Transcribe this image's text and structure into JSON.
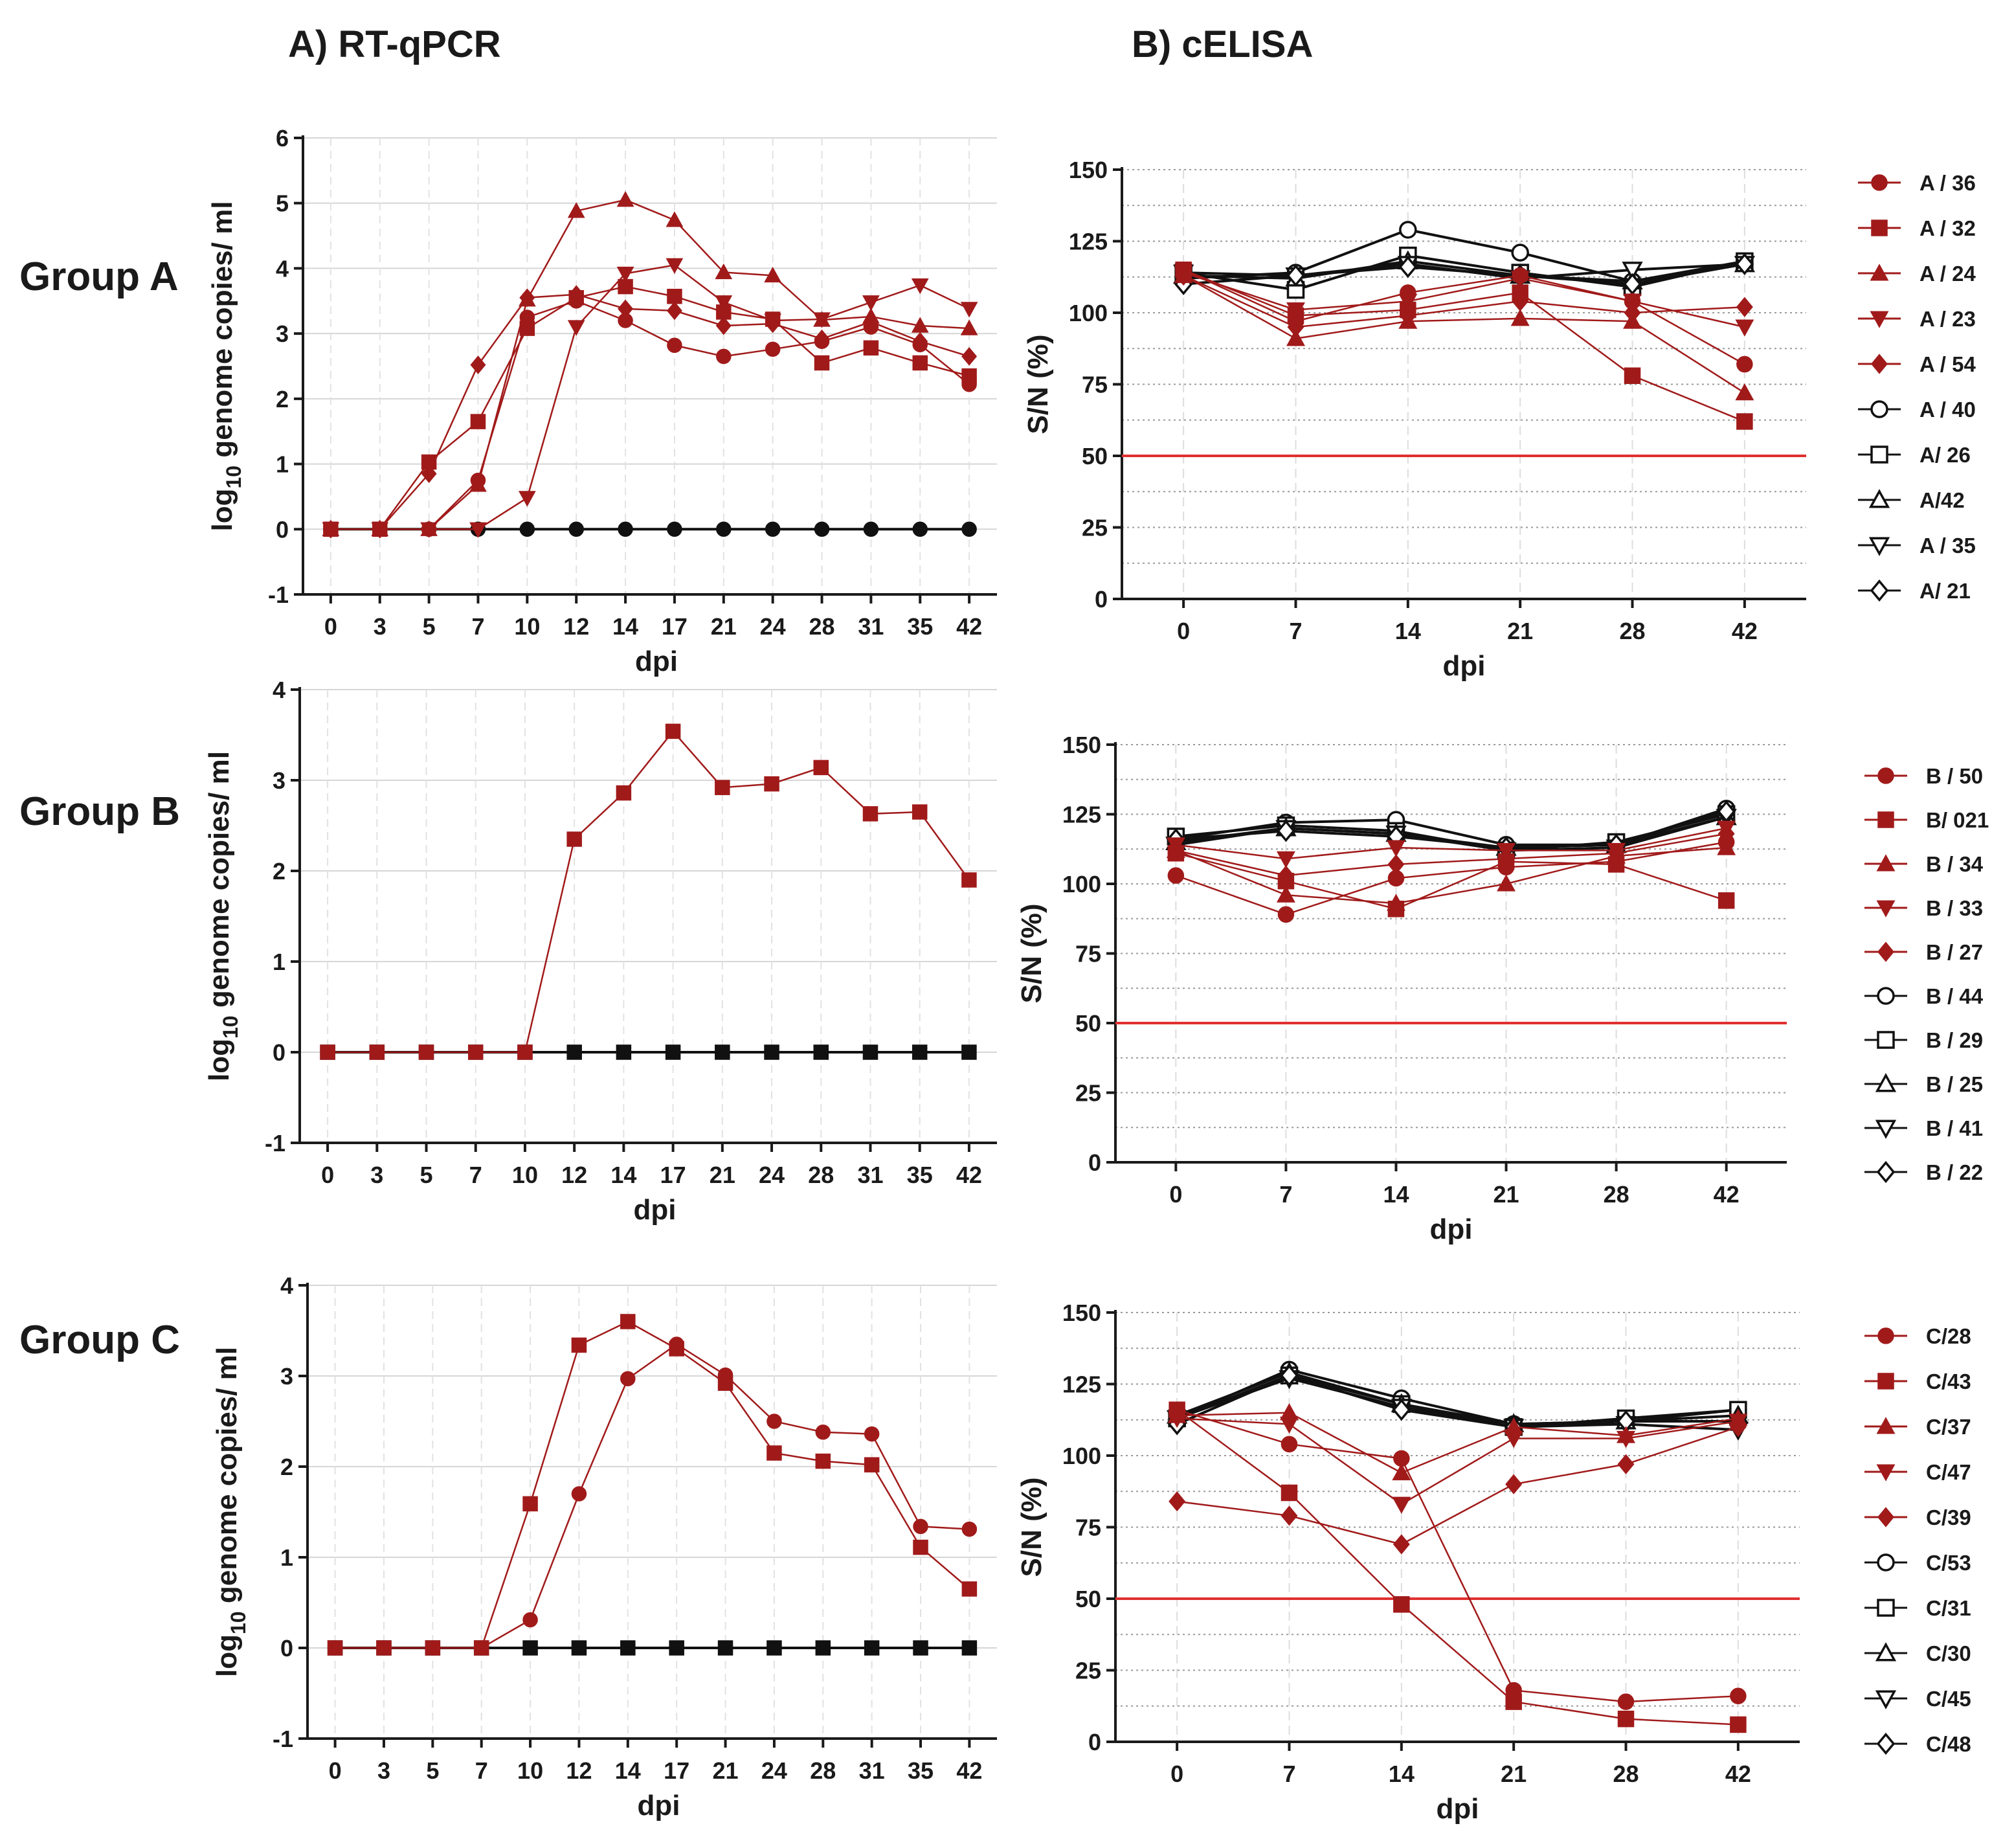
{
  "headings": {
    "a": "A) RT-qPCR",
    "b": "B) cELISA"
  },
  "groups": [
    "Group A",
    "Group B",
    "Group C"
  ],
  "colors": {
    "positive": "#a11a1a",
    "negative": "#111111",
    "cutoff": "#e03030",
    "grid": "#c8c8c8",
    "axis": "#1a1a1a"
  },
  "markers": [
    "circle",
    "square",
    "triangle-up",
    "triangle-down",
    "diamond"
  ],
  "chart_data": [
    {
      "id": "A1",
      "type": "line",
      "title": "RT-qPCR Group A",
      "xlabel": "dpi",
      "ylabel": "log10 genome copies/ ml",
      "ylabel_base": "log",
      "ylabel_sub": "10",
      "ylabel_rest": " genome copies/ ml",
      "categories": [
        "0",
        "3",
        "5",
        "7",
        "10",
        "12",
        "14",
        "17",
        "21",
        "24",
        "28",
        "31",
        "35",
        "42"
      ],
      "ylim": [
        -1,
        6
      ],
      "yticks": [
        "-1",
        "0",
        "1",
        "2",
        "3",
        "4",
        "5",
        "6"
      ],
      "series": [
        {
          "name": "A / 36",
          "marker": "circle",
          "color": "positive",
          "values": [
            0,
            0,
            0,
            0.75,
            3.25,
            3.5,
            3.2,
            2.82,
            2.65,
            2.76,
            2.88,
            3.1,
            2.83,
            2.22
          ]
        },
        {
          "name": "A / 32",
          "marker": "square",
          "color": "positive",
          "values": [
            0,
            0,
            1.03,
            1.65,
            3.08,
            3.55,
            3.72,
            3.57,
            3.33,
            3.22,
            2.55,
            2.78,
            2.55,
            2.35
          ]
        },
        {
          "name": "A / 24",
          "marker": "triangle-up",
          "color": "positive",
          "values": [
            0,
            0,
            0,
            0.68,
            3.52,
            4.88,
            5.05,
            4.74,
            3.94,
            3.89,
            3.21,
            3.26,
            3.12,
            3.08
          ]
        },
        {
          "name": "A / 23",
          "marker": "triangle-down",
          "color": "positive",
          "values": [
            0,
            0,
            0,
            0,
            0.48,
            3.1,
            3.92,
            4.05,
            3.48,
            3.2,
            3.22,
            3.48,
            3.74,
            3.38
          ]
        },
        {
          "name": "A / 54",
          "marker": "diamond",
          "color": "positive",
          "values": [
            0,
            0,
            0.85,
            2.52,
            3.55,
            3.6,
            3.38,
            3.35,
            3.12,
            3.15,
            2.92,
            3.18,
            2.88,
            2.65
          ]
        },
        {
          "name": "A / 40",
          "marker": "circle",
          "color": "negative",
          "values": [
            0,
            0,
            0,
            0,
            0,
            0,
            0,
            0,
            0,
            0,
            0,
            0,
            0,
            0
          ]
        }
      ]
    },
    {
      "id": "B1",
      "type": "line",
      "title": "cELISA Group A",
      "xlabel": "dpi",
      "ylabel": "S/N (%)",
      "categories": [
        "0",
        "7",
        "14",
        "21",
        "28",
        "42"
      ],
      "ylim": [
        0,
        150
      ],
      "yticks": [
        "0",
        "25",
        "50",
        "75",
        "100",
        "125",
        "150"
      ],
      "cutoff": 50,
      "series": [
        {
          "name": "A / 36",
          "marker": "circle",
          "color": "positive",
          "values": [
            115,
            97,
            107,
            113,
            104,
            82
          ]
        },
        {
          "name": "A / 32",
          "marker": "square",
          "color": "positive",
          "values": [
            115,
            99,
            101,
            107,
            78,
            62
          ]
        },
        {
          "name": "A / 24",
          "marker": "triangle-up",
          "color": "positive",
          "values": [
            113,
            91,
            97,
            98,
            97,
            72
          ]
        },
        {
          "name": "A / 23",
          "marker": "triangle-down",
          "color": "positive",
          "values": [
            114,
            101,
            104,
            112,
            104,
            95
          ]
        },
        {
          "name": "A / 54",
          "marker": "diamond",
          "color": "positive",
          "values": [
            113,
            95,
            99,
            104,
            100,
            102
          ]
        },
        {
          "name": "A / 40",
          "marker": "circle-open",
          "color": "negative",
          "values": [
            112,
            114,
            129,
            121,
            111,
            118
          ]
        },
        {
          "name": "A/ 26",
          "marker": "square-open",
          "color": "negative",
          "values": [
            114,
            108,
            120,
            114,
            109,
            118
          ]
        },
        {
          "name": "A/42",
          "marker": "triangle-up-open",
          "color": "negative",
          "values": [
            113,
            112,
            118,
            113,
            111,
            117
          ]
        },
        {
          "name": "A / 35",
          "marker": "triangle-down-open",
          "color": "negative",
          "values": [
            114,
            113,
            117,
            112,
            115,
            117
          ]
        },
        {
          "name": "A/ 21",
          "marker": "diamond-open",
          "color": "negative",
          "values": [
            110,
            113,
            116,
            113,
            110,
            117
          ]
        }
      ]
    },
    {
      "id": "A2",
      "type": "line",
      "title": "RT-qPCR Group B",
      "xlabel": "dpi",
      "ylabel": "log10 genome copies/ ml",
      "ylabel_base": "log",
      "ylabel_sub": "10",
      "ylabel_rest": " genome copies/ ml",
      "categories": [
        "0",
        "3",
        "5",
        "7",
        "10",
        "12",
        "14",
        "17",
        "21",
        "24",
        "28",
        "31",
        "35",
        "42"
      ],
      "ylim": [
        -1,
        4
      ],
      "yticks": [
        "-1",
        "0",
        "1",
        "2",
        "3",
        "4"
      ],
      "series": [
        {
          "name": "B/ 021",
          "marker": "square",
          "color": "positive",
          "values": [
            0,
            0,
            0,
            0,
            0,
            2.35,
            2.86,
            3.54,
            2.92,
            2.96,
            3.14,
            2.63,
            2.65,
            1.9
          ]
        },
        {
          "name": "B / 29",
          "marker": "square",
          "color": "negative",
          "values": [
            0,
            0,
            0,
            0,
            0,
            0,
            0,
            0,
            0,
            0,
            0,
            0,
            0,
            0
          ]
        }
      ]
    },
    {
      "id": "B2",
      "type": "line",
      "title": "cELISA Group B",
      "xlabel": "dpi",
      "ylabel": "S/N (%)",
      "categories": [
        "0",
        "7",
        "14",
        "21",
        "28",
        "42"
      ],
      "ylim": [
        0,
        150
      ],
      "yticks": [
        "0",
        "25",
        "50",
        "75",
        "100",
        "125",
        "150"
      ],
      "cutoff": 50,
      "series": [
        {
          "name": "B / 50",
          "marker": "circle",
          "color": "positive",
          "values": [
            103,
            89,
            102,
            106,
            108,
            115
          ]
        },
        {
          "name": "B/ 021",
          "marker": "square",
          "color": "positive",
          "values": [
            111,
            101,
            91,
            108,
            107,
            94
          ]
        },
        {
          "name": "B / 34",
          "marker": "triangle-up",
          "color": "positive",
          "values": [
            112,
            96,
            93,
            100,
            110,
            113
          ]
        },
        {
          "name": "B / 33",
          "marker": "triangle-down",
          "color": "positive",
          "values": [
            114,
            109,
            113,
            112,
            112,
            120
          ]
        },
        {
          "name": "B / 27",
          "marker": "diamond",
          "color": "positive",
          "values": [
            112,
            103,
            107,
            109,
            111,
            118
          ]
        },
        {
          "name": "B / 44",
          "marker": "circle-open",
          "color": "negative",
          "values": [
            116,
            122,
            123,
            114,
            114,
            127
          ]
        },
        {
          "name": "B / 29",
          "marker": "square-open",
          "color": "negative",
          "values": [
            117,
            121,
            119,
            112,
            115,
            125
          ]
        },
        {
          "name": "B / 25",
          "marker": "triangle-up-open",
          "color": "negative",
          "values": [
            115,
            120,
            118,
            113,
            114,
            124
          ]
        },
        {
          "name": "B / 41",
          "marker": "triangle-down-open",
          "color": "negative",
          "values": [
            114,
            120,
            118,
            112,
            113,
            124
          ]
        },
        {
          "name": "B / 22",
          "marker": "diamond-open",
          "color": "negative",
          "values": [
            116,
            119,
            117,
            113,
            114,
            126
          ]
        }
      ]
    },
    {
      "id": "A3",
      "type": "line",
      "title": "RT-qPCR Group C",
      "xlabel": "dpi",
      "ylabel": "log10 genome copies/ ml",
      "ylabel_base": "log",
      "ylabel_sub": "10",
      "ylabel_rest": " genome copies/ ml",
      "categories": [
        "0",
        "3",
        "5",
        "7",
        "10",
        "12",
        "14",
        "17",
        "21",
        "24",
        "28",
        "31",
        "35",
        "42"
      ],
      "ylim": [
        -1,
        4
      ],
      "yticks": [
        "-1",
        "0",
        "1",
        "2",
        "3",
        "4"
      ],
      "series": [
        {
          "name": "C/28",
          "marker": "circle",
          "color": "positive",
          "values": [
            0,
            0,
            0,
            0,
            0.31,
            1.7,
            2.97,
            3.35,
            3.01,
            2.5,
            2.38,
            2.36,
            1.34,
            1.31
          ]
        },
        {
          "name": "C/43",
          "marker": "square",
          "color": "positive",
          "values": [
            0,
            0,
            0,
            0,
            1.59,
            3.34,
            3.6,
            3.3,
            2.92,
            2.15,
            2.06,
            2.02,
            1.11,
            0.65
          ]
        },
        {
          "name": "C/31",
          "marker": "square",
          "color": "negative",
          "values": [
            0,
            0,
            0,
            0,
            0,
            0,
            0,
            0,
            0,
            0,
            0,
            0,
            0,
            0
          ]
        }
      ]
    },
    {
      "id": "B3",
      "type": "line",
      "title": "cELISA Group C",
      "xlabel": "dpi",
      "ylabel": "S/N (%)",
      "categories": [
        "0",
        "7",
        "14",
        "21",
        "28",
        "42"
      ],
      "ylim": [
        0,
        150
      ],
      "yticks": [
        "0",
        "25",
        "50",
        "75",
        "100",
        "125",
        "150"
      ],
      "cutoff": 50,
      "series": [
        {
          "name": "C/28",
          "marker": "circle",
          "color": "positive",
          "values": [
            116,
            104,
            99,
            18,
            14,
            16
          ]
        },
        {
          "name": "C/43",
          "marker": "square",
          "color": "positive",
          "values": [
            116,
            87,
            48,
            14,
            8,
            6
          ]
        },
        {
          "name": "C/37",
          "marker": "triangle-up",
          "color": "positive",
          "values": [
            114,
            115,
            94,
            110,
            107,
            113
          ]
        },
        {
          "name": "C/47",
          "marker": "triangle-down",
          "color": "positive",
          "values": [
            113,
            111,
            83,
            106,
            106,
            112
          ]
        },
        {
          "name": "C/39",
          "marker": "diamond",
          "color": "positive",
          "values": [
            84,
            79,
            69,
            90,
            97,
            110
          ]
        },
        {
          "name": "C/53",
          "marker": "circle-open",
          "color": "negative",
          "values": [
            113,
            130,
            120,
            111,
            112,
            116
          ]
        },
        {
          "name": "C/31",
          "marker": "square-open",
          "color": "negative",
          "values": [
            113,
            128,
            118,
            110,
            113,
            116
          ]
        },
        {
          "name": "C/30",
          "marker": "triangle-up-open",
          "color": "negative",
          "values": [
            114,
            129,
            118,
            111,
            112,
            114
          ]
        },
        {
          "name": "C/45",
          "marker": "triangle-down-open",
          "color": "negative",
          "values": [
            113,
            127,
            117,
            110,
            111,
            109
          ]
        },
        {
          "name": "C/48",
          "marker": "diamond-open",
          "color": "negative",
          "values": [
            111,
            128,
            116,
            110,
            112,
            112
          ]
        }
      ]
    }
  ]
}
